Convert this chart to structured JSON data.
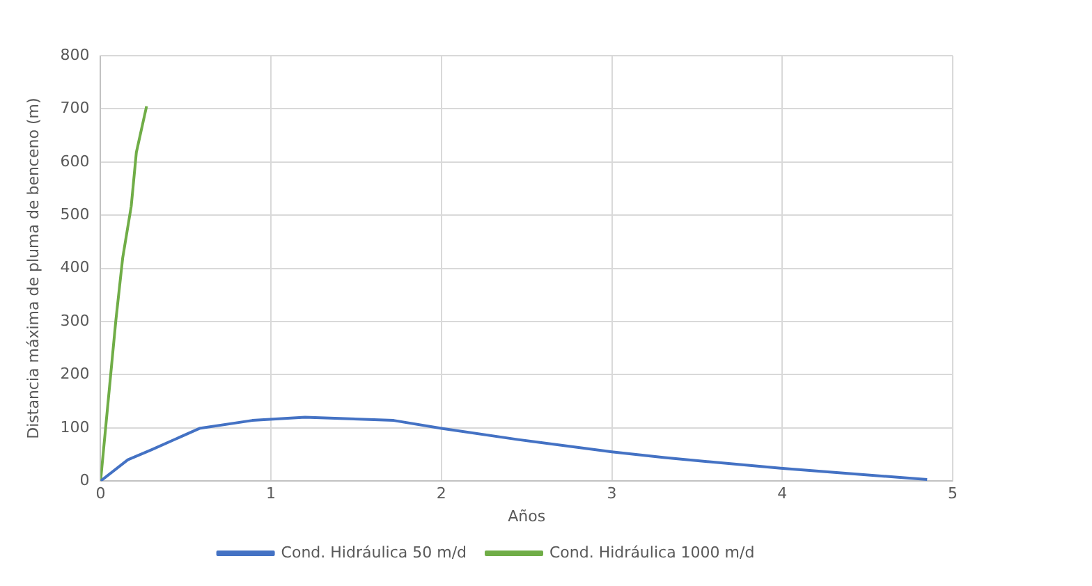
{
  "chart_data": {
    "type": "line",
    "xlabel": "Años",
    "ylabel": "Distancia máxima de pluma de benceno (m)",
    "xlim": [
      0,
      5
    ],
    "xticks": [
      0,
      1,
      2,
      3,
      4,
      5
    ],
    "ylim": [
      0,
      800
    ],
    "yticks": [
      0,
      100,
      200,
      300,
      400,
      500,
      600,
      700,
      800
    ],
    "grid": true,
    "legend": "bottom",
    "marker": "none",
    "series": [
      {
        "name": "Cond. Hidráulica 50 m/d",
        "color": "#4472c4",
        "x": [
          0,
          0.16,
          0.3,
          0.58,
          0.89,
          1.2,
          1.72,
          2.0,
          2.45,
          3.0,
          3.31,
          3.99,
          4.85
        ],
        "values": [
          0,
          40,
          59,
          99,
          114,
          120,
          114,
          99,
          78,
          55,
          44,
          24,
          3
        ]
      },
      {
        "name": "Cond. Hidráulica 1000 m/d",
        "color": "#70ad47",
        "x": [
          0,
          0.09,
          0.13,
          0.18,
          0.21,
          0.27
        ],
        "values": [
          0,
          303,
          420,
          517,
          618,
          705
        ]
      }
    ]
  }
}
